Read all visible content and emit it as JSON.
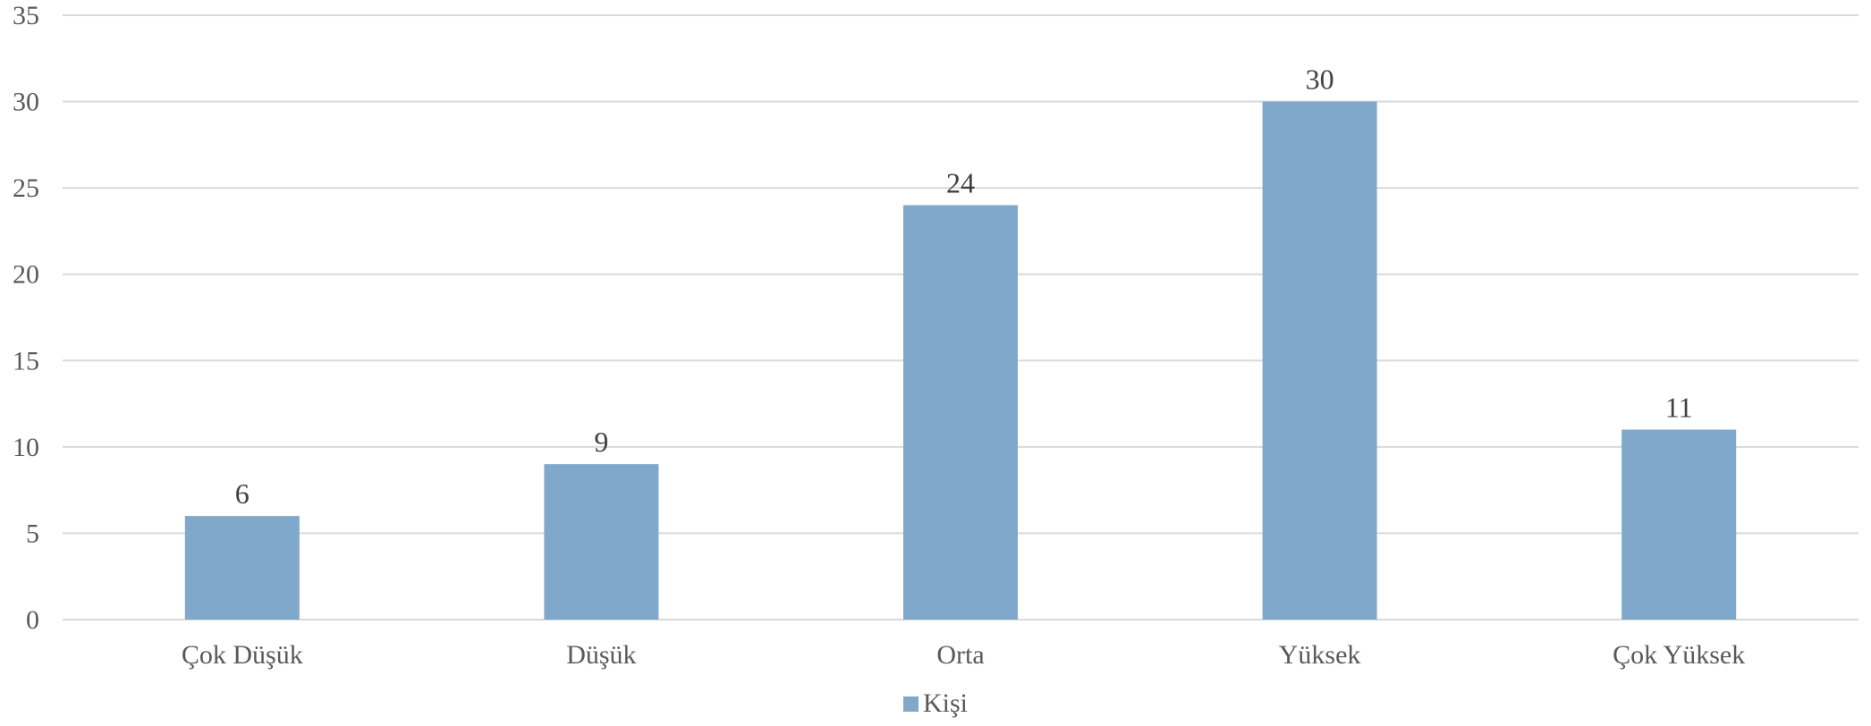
{
  "chart_data": {
    "type": "bar",
    "categories": [
      "Çok Düşük",
      "Düşük",
      "Orta",
      "Yüksek",
      "Çok Yüksek"
    ],
    "series": [
      {
        "name": "Kişi",
        "values": [
          6,
          9,
          24,
          30,
          11
        ]
      }
    ],
    "ylim": [
      0,
      35
    ],
    "yticks": [
      "0",
      "5",
      "10",
      "15",
      "20",
      "25",
      "30",
      "35"
    ],
    "grid": true,
    "legend_position": "bottom",
    "data_labels": true,
    "colors": {
      "bar": "#7FA8CB",
      "grid": "#D9D9D9",
      "axis": "#D9D9D9"
    }
  }
}
